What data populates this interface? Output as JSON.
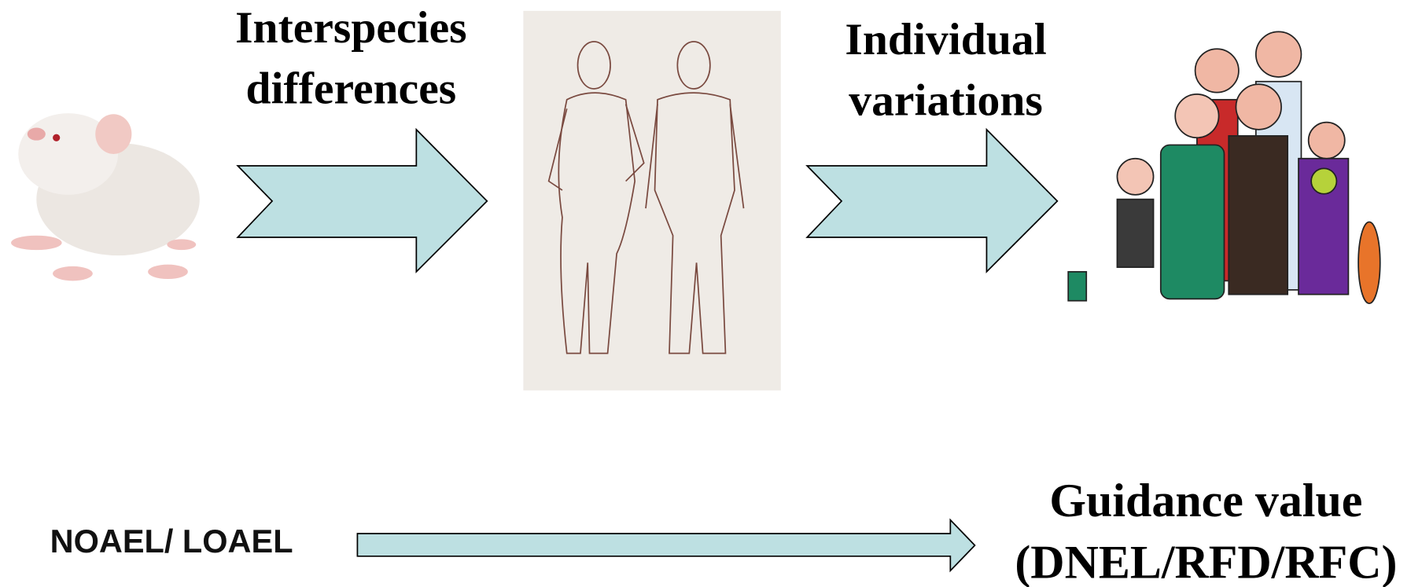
{
  "transitions": [
    {
      "label_lines": [
        "Interspecies",
        "differences"
      ]
    },
    {
      "label_lines": [
        "Individual",
        "variations"
      ]
    }
  ],
  "start": {
    "label": "NOAEL/ LOAEL"
  },
  "end": {
    "label_lines": [
      "Guidance value",
      "(DNEL/RFD/RFC)"
    ]
  }
}
